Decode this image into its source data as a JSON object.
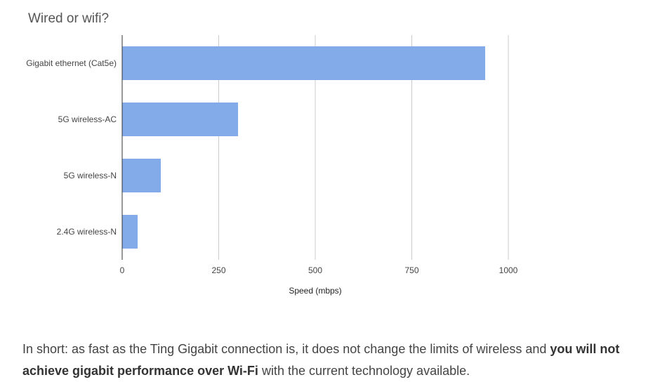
{
  "chart_data": {
    "type": "bar",
    "orientation": "horizontal",
    "title": "Wired or wifi?",
    "categories": [
      "Gigabit ethernet (Cat5e)",
      "5G wireless-AC",
      "5G wireless-N",
      "2.4G wireless-N"
    ],
    "values": [
      940,
      300,
      100,
      40
    ],
    "xlabel": "Speed (mbps)",
    "ylabel": "",
    "xlim": [
      0,
      1000
    ],
    "xticks": [
      0,
      250,
      500,
      750,
      1000
    ],
    "grid": true,
    "legend": "none",
    "bar_color": "#84abe9"
  },
  "caption": {
    "before": "In short: as fast as the Ting Gigabit connection is, it does not change the limits of wireless and ",
    "bold": "you will not achieve gigabit performance over Wi-Fi",
    "after": " with the current technology available."
  }
}
